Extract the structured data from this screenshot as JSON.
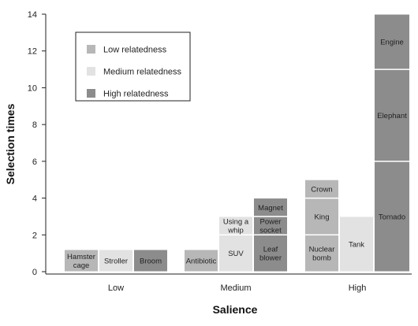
{
  "chart_data": {
    "type": "bar",
    "xlabel": "Salience",
    "ylabel": "Selection times",
    "ylim": [
      0,
      14
    ],
    "yticks": [
      0,
      2,
      4,
      6,
      8,
      10,
      12,
      14
    ],
    "grid": false,
    "legend_position": "top-left",
    "colors": {
      "low": "#b7b7b7",
      "medium": "#e2e2e2",
      "high": "#8c8c8c"
    },
    "legend": [
      {
        "key": "low",
        "label": "Low relatedness"
      },
      {
        "key": "medium",
        "label": "Medium relatedness"
      },
      {
        "key": "high",
        "label": "High relatedness"
      }
    ],
    "groups": [
      {
        "label": "Low",
        "stacks": [
          {
            "relatedness": "low",
            "segments": [
              {
                "name": "Hamster cage",
                "lines": [
                  "Hamster",
                  "cage"
                ],
                "value": 1.2
              }
            ]
          },
          {
            "relatedness": "medium",
            "segments": [
              {
                "name": "Stroller",
                "lines": [
                  "Stroller"
                ],
                "value": 1.2
              }
            ]
          },
          {
            "relatedness": "high",
            "segments": [
              {
                "name": "Broom",
                "lines": [
                  "Broom"
                ],
                "value": 1.2
              }
            ]
          }
        ]
      },
      {
        "label": "Medium",
        "stacks": [
          {
            "relatedness": "low",
            "segments": [
              {
                "name": "Antibiotic",
                "lines": [
                  "Antibiotic"
                ],
                "value": 1.2
              }
            ]
          },
          {
            "relatedness": "medium",
            "segments": [
              {
                "name": "SUV",
                "lines": [
                  "SUV"
                ],
                "value": 2.0
              },
              {
                "name": "Using a whip",
                "lines": [
                  "Using a",
                  "whip"
                ],
                "value": 1.0
              }
            ]
          },
          {
            "relatedness": "high",
            "segments": [
              {
                "name": "Leaf blower",
                "lines": [
                  "Leaf",
                  "blower"
                ],
                "value": 2.0
              },
              {
                "name": "Power socket",
                "lines": [
                  "Power",
                  "socket"
                ],
                "value": 1.0
              },
              {
                "name": "Magnet",
                "lines": [
                  "Magnet"
                ],
                "value": 1.0
              }
            ]
          }
        ]
      },
      {
        "label": "High",
        "stacks": [
          {
            "relatedness": "low",
            "segments": [
              {
                "name": "Nuclear bomb",
                "lines": [
                  "Nuclear",
                  "bomb"
                ],
                "value": 2.0
              },
              {
                "name": "King",
                "lines": [
                  "King"
                ],
                "value": 2.0
              },
              {
                "name": "Crown",
                "lines": [
                  "Crown"
                ],
                "value": 1.0
              }
            ]
          },
          {
            "relatedness": "medium",
            "segments": [
              {
                "name": "Tank",
                "lines": [
                  "Tank"
                ],
                "value": 3.0
              }
            ]
          },
          {
            "relatedness": "high",
            "segments": [
              {
                "name": "Tornado",
                "lines": [
                  "Tornado"
                ],
                "value": 6.0
              },
              {
                "name": "Elephant",
                "lines": [
                  "Elephant"
                ],
                "value": 5.0
              },
              {
                "name": "Engine",
                "lines": [
                  "Engine"
                ],
                "value": 3.0
              }
            ]
          }
        ]
      }
    ]
  }
}
